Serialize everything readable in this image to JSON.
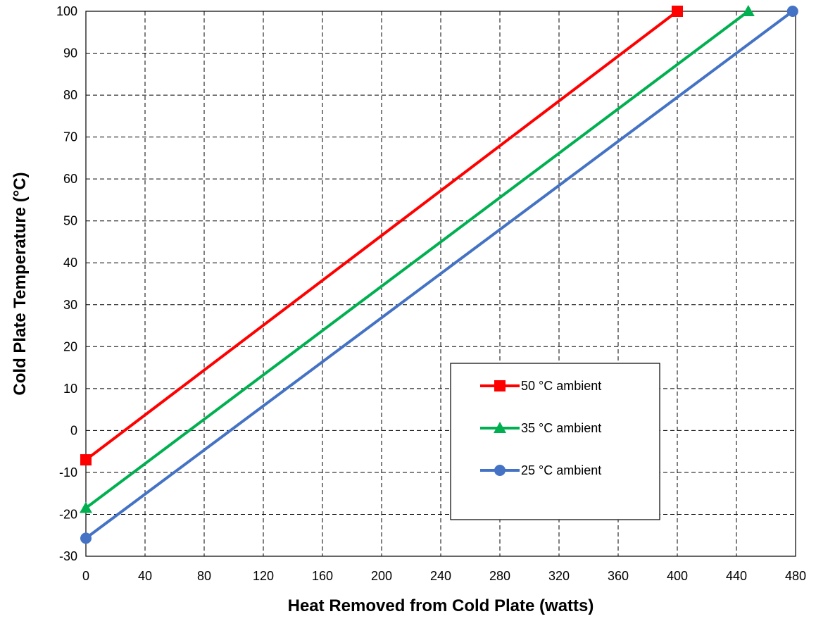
{
  "chart_data": {
    "type": "line",
    "title": "",
    "xlabel": "Heat Removed from Cold Plate (watts)",
    "ylabel": "Cold Plate Temperature (°C)",
    "xlim": [
      0,
      480
    ],
    "ylim": [
      -30,
      100
    ],
    "xticks": [
      0,
      40,
      80,
      120,
      160,
      200,
      240,
      280,
      320,
      360,
      400,
      440,
      480
    ],
    "yticks": [
      -30,
      -20,
      -10,
      0,
      10,
      20,
      30,
      40,
      50,
      60,
      70,
      80,
      90,
      100
    ],
    "grid": true,
    "grid_style": "dashed",
    "legend_position": "lower-right",
    "series": [
      {
        "name": "50 °C ambient",
        "color": "#ff0000",
        "marker": "square",
        "x": [
          0,
          400
        ],
        "y": [
          -7,
          100
        ]
      },
      {
        "name": "35 °C ambient",
        "color": "#00b050",
        "marker": "triangle",
        "x": [
          0,
          448
        ],
        "y": [
          -18.5,
          100
        ]
      },
      {
        "name": "25 °C ambient",
        "color": "#4472c4",
        "marker": "circle",
        "x": [
          0,
          478
        ],
        "y": [
          -25.7,
          100
        ]
      }
    ]
  }
}
